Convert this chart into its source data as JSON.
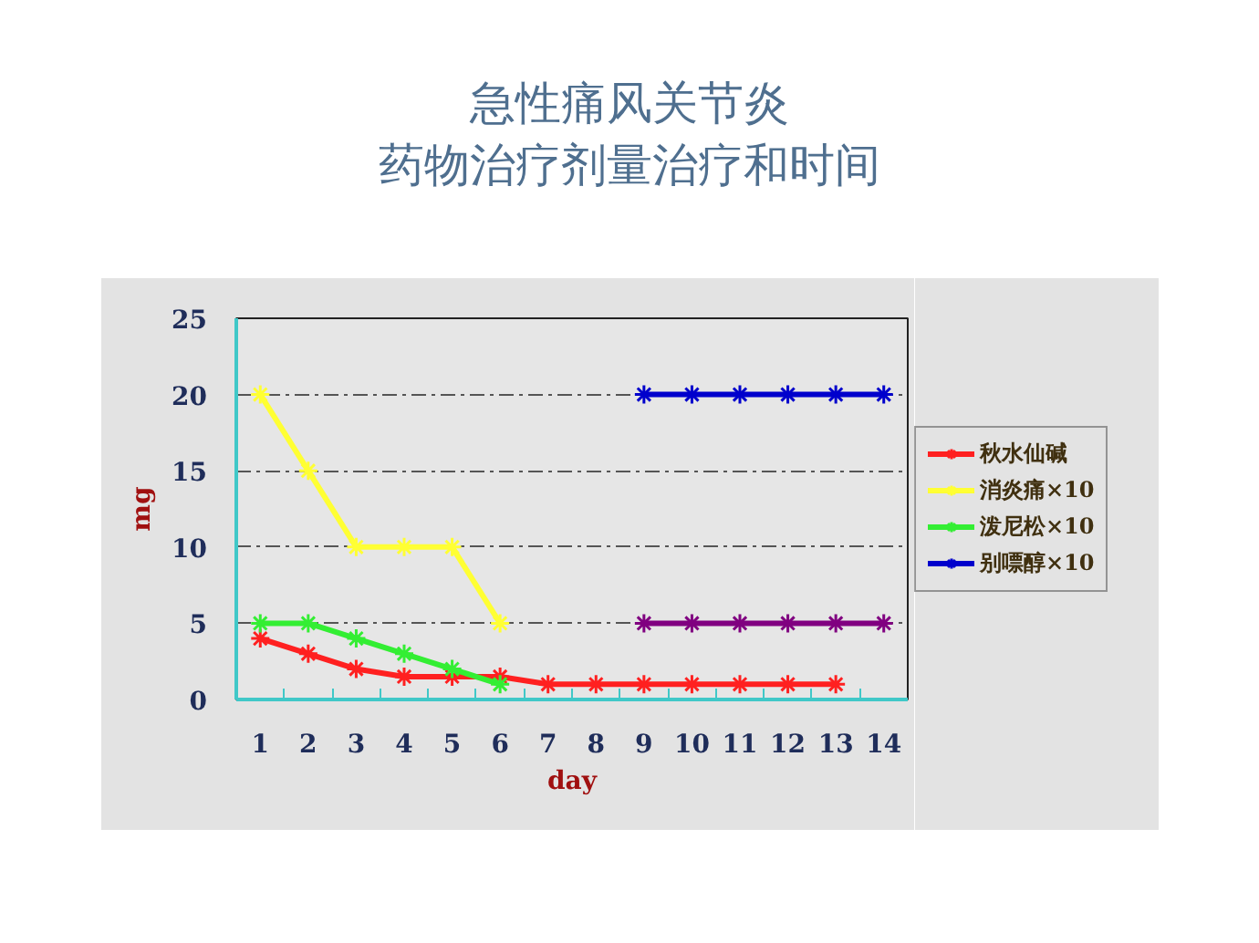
{
  "chart_data": {
    "type": "line",
    "title": "急性痛风关节炎",
    "subtitle": "药物治疗剂量治疗和时间",
    "xlabel": "day",
    "ylabel": "mg",
    "xlim": [
      0.5,
      14.5
    ],
    "xticks": [
      1,
      2,
      3,
      4,
      5,
      6,
      7,
      8,
      9,
      10,
      11,
      12,
      13,
      14
    ],
    "ylim": [
      0,
      25
    ],
    "yticks": [
      0,
      5,
      10,
      15,
      20,
      25
    ],
    "grid": "y",
    "legend": "right",
    "marker": "cross",
    "line_style": "solid",
    "series": [
      {
        "name": "秋水仙碱",
        "color": "#ff2020",
        "x": [
          1,
          2,
          3,
          4,
          5,
          6,
          7,
          8,
          9,
          10,
          11,
          12,
          13
        ],
        "values": [
          4,
          3,
          2,
          1.5,
          1.5,
          1.5,
          1,
          1,
          1,
          1,
          1,
          1,
          1
        ]
      },
      {
        "name": "消炎痛×10",
        "color": "#ffff33",
        "x": [
          1,
          2,
          3,
          4,
          5,
          6
        ],
        "values": [
          20,
          15,
          10,
          10,
          10,
          5
        ]
      },
      {
        "name": "泼尼松×10",
        "color": "#33ee33",
        "x": [
          1,
          2,
          3,
          4,
          5,
          6
        ],
        "values": [
          5,
          5,
          4,
          3,
          2,
          1
        ]
      },
      {
        "color": "#800080",
        "x": [
          9,
          10,
          11,
          12,
          13,
          14
        ],
        "values": [
          5,
          5,
          5,
          5,
          5,
          5
        ]
      },
      {
        "name": "别嘌醇×10",
        "color": "#0000cc",
        "x": [
          9,
          10,
          11,
          12,
          13,
          14
        ],
        "values": [
          20,
          20,
          20,
          20,
          20,
          20
        ]
      }
    ]
  }
}
